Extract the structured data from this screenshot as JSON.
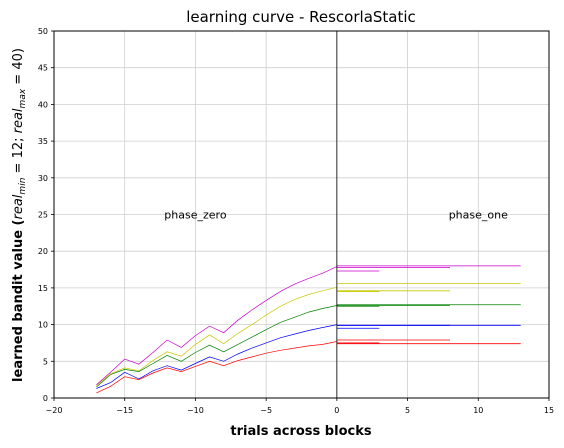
{
  "chart_data": {
    "type": "line",
    "title": "learning curve - RescorlaStatic",
    "xlabel": "trials across blocks",
    "ylabel": "learned bandit value (real_min = 12; real_max = 40)",
    "ylabel_parts": {
      "pre": "learned bandit value (",
      "r1": "real",
      "s1": "min",
      "mid": " = 12; ",
      "r2": "real",
      "s2": "max",
      "post": " = 40)"
    },
    "xlim": [
      -20,
      15
    ],
    "ylim": [
      0,
      50
    ],
    "xticks": [
      -20,
      -15,
      -10,
      -5,
      0,
      5,
      10,
      15
    ],
    "yticks": [
      0,
      5,
      10,
      15,
      20,
      25,
      30,
      35,
      40,
      45,
      50
    ],
    "grid": true,
    "vline_x": 0,
    "annotations": [
      {
        "text": "phase_zero",
        "x": -10,
        "y": 25
      },
      {
        "text": "phase_one",
        "x": 10,
        "y": 25
      }
    ],
    "series": [
      {
        "name": "red",
        "color": "#ff0000",
        "x": [
          -17,
          -16,
          -15,
          -14,
          -13,
          -12,
          -11,
          -10,
          -9,
          -8,
          -7,
          -6,
          -5,
          -4,
          -3,
          -2,
          -1,
          0
        ],
        "y": [
          0.7,
          1.6,
          2.9,
          2.5,
          3.4,
          4.1,
          3.6,
          4.3,
          5.0,
          4.4,
          5.1,
          5.6,
          6.1,
          6.5,
          6.8,
          7.1,
          7.3,
          7.7
        ]
      },
      {
        "name": "blue",
        "color": "#0000ff",
        "x": [
          -17,
          -16,
          -15,
          -14,
          -13,
          -12,
          -11,
          -10,
          -9,
          -8,
          -7,
          -6,
          -5,
          -4,
          -3,
          -2,
          -1,
          0
        ],
        "y": [
          1.3,
          2.1,
          3.5,
          2.6,
          3.7,
          4.4,
          3.8,
          4.7,
          5.6,
          5.0,
          6.0,
          6.8,
          7.5,
          8.2,
          8.7,
          9.2,
          9.6,
          10.0
        ]
      },
      {
        "name": "green",
        "color": "#008000",
        "x": [
          -17,
          -16,
          -15,
          -14,
          -13,
          -12,
          -11,
          -10,
          -9,
          -8,
          -7,
          -6,
          -5,
          -4,
          -3,
          -2,
          -1,
          0
        ],
        "y": [
          1.5,
          3.2,
          3.9,
          3.6,
          4.7,
          5.8,
          5.0,
          6.2,
          7.2,
          6.3,
          7.3,
          8.3,
          9.3,
          10.3,
          11.0,
          11.7,
          12.2,
          12.6
        ]
      },
      {
        "name": "olive",
        "color": "#c8c800",
        "x": [
          -17,
          -16,
          -15,
          -14,
          -13,
          -12,
          -11,
          -10,
          -9,
          -8,
          -7,
          -6,
          -5,
          -4,
          -3,
          -2,
          -1,
          0
        ],
        "y": [
          1.7,
          3.3,
          4.1,
          3.7,
          5.1,
          6.3,
          5.7,
          7.3,
          8.6,
          7.4,
          8.8,
          10.0,
          11.3,
          12.5,
          13.4,
          14.1,
          14.6,
          15.1
        ]
      },
      {
        "name": "magenta",
        "color": "#cc00cc",
        "x": [
          -17,
          -16,
          -15,
          -14,
          -13,
          -12,
          -11,
          -10,
          -9,
          -8,
          -7,
          -6,
          -5,
          -4,
          -3,
          -2,
          -1,
          0
        ],
        "y": [
          1.8,
          3.5,
          5.3,
          4.6,
          6.2,
          7.9,
          6.9,
          8.5,
          9.8,
          8.9,
          10.6,
          12.0,
          13.3,
          14.5,
          15.5,
          16.3,
          17.0,
          17.9
        ]
      }
    ],
    "phase_one_segments": [
      {
        "color": "#ff0000",
        "x": [
          0,
          3
        ],
        "y": 7.5
      },
      {
        "color": "#ff0000",
        "x": [
          0,
          8
        ],
        "y": 7.9
      },
      {
        "color": "#ff0000",
        "x": [
          0,
          13
        ],
        "y": 7.4
      },
      {
        "color": "#0000ff",
        "x": [
          0,
          3
        ],
        "y": 9.5
      },
      {
        "color": "#0000ff",
        "x": [
          0,
          8
        ],
        "y": 9.9
      },
      {
        "color": "#0000ff",
        "x": [
          0,
          13
        ],
        "y": 9.9
      },
      {
        "color": "#008000",
        "x": [
          0,
          3
        ],
        "y": 12.5
      },
      {
        "color": "#008000",
        "x": [
          0,
          8
        ],
        "y": 12.6
      },
      {
        "color": "#008000",
        "x": [
          0,
          13
        ],
        "y": 12.7
      },
      {
        "color": "#c8c800",
        "x": [
          0,
          3
        ],
        "y": 14.5
      },
      {
        "color": "#c8c800",
        "x": [
          0,
          8
        ],
        "y": 14.6
      },
      {
        "color": "#c8c800",
        "x": [
          0,
          13
        ],
        "y": 15.6
      },
      {
        "color": "#cc00cc",
        "x": [
          0,
          3
        ],
        "y": 17.3
      },
      {
        "color": "#cc00cc",
        "x": [
          0,
          8
        ],
        "y": 17.8
      },
      {
        "color": "#cc00cc",
        "x": [
          0,
          13
        ],
        "y": 18.0
      }
    ]
  }
}
